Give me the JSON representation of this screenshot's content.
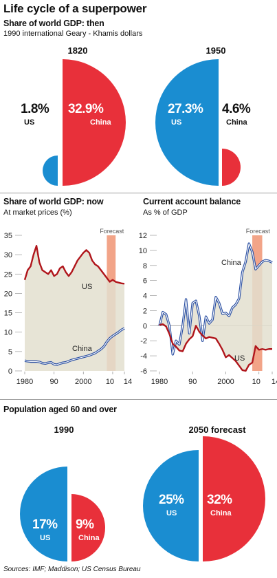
{
  "title": "Life cycle of a superpower",
  "section1": {
    "title": "Share of world GDP: then",
    "subtitle": "1990 international Geary - Khamis dollars",
    "panels": [
      {
        "year": "1820",
        "us_value": "1.8%",
        "us_label": "US",
        "china_value": "32.9%",
        "china_label": "China"
      },
      {
        "year": "1950",
        "us_value": "27.3%",
        "us_label": "US",
        "china_value": "4.6%",
        "china_label": "China"
      }
    ]
  },
  "section2": {
    "title": "Share of world GDP: now",
    "subtitle": "At market prices (%)",
    "forecast_label": "Forecast",
    "us_label": "US",
    "china_label": "China"
  },
  "section3": {
    "title": "Current account balance",
    "subtitle": "As % of GDP",
    "forecast_label": "Forecast",
    "us_label": "US",
    "china_label": "China"
  },
  "section4": {
    "title": "Population aged 60 and over",
    "panels": [
      {
        "year": "1990",
        "us_value": "17%",
        "us_label": "US",
        "china_value": "9%",
        "china_label": "China"
      },
      {
        "year": "2050 forecast",
        "us_value": "25%",
        "us_label": "US",
        "china_value": "32%",
        "china_label": "China"
      }
    ]
  },
  "source": "Sources: IMF; Maddison; US Census Bureau",
  "colors": {
    "us": "#1a8dd1",
    "china": "#e8303a",
    "area": "#e3dfcf",
    "forecast": "#f2a488",
    "us_line": "#b0151b",
    "china_line": "#2a4fa2"
  },
  "chart_data": [
    {
      "type": "pie",
      "title": "Share of world GDP: then — 1820",
      "categories": [
        "US",
        "China"
      ],
      "values": [
        1.8,
        32.9
      ]
    },
    {
      "type": "pie",
      "title": "Share of world GDP: then — 1950",
      "categories": [
        "US",
        "China"
      ],
      "values": [
        27.3,
        4.6
      ]
    },
    {
      "type": "area",
      "title": "Share of world GDP: now",
      "ylabel": "At market prices (%)",
      "x": [
        1980,
        1981,
        1982,
        1983,
        1984,
        1985,
        1986,
        1987,
        1988,
        1989,
        1990,
        1991,
        1992,
        1993,
        1994,
        1995,
        1996,
        1997,
        1998,
        1999,
        2000,
        2001,
        2002,
        2003,
        2004,
        2005,
        2006,
        2007,
        2008,
        2009,
        2010,
        2011,
        2012,
        2013,
        2014
      ],
      "xticks": [
        "1980",
        "90",
        "2000",
        "10",
        "14"
      ],
      "xtick_values": [
        1980,
        1990,
        2000,
        2010,
        2014
      ],
      "ylim": [
        0,
        35
      ],
      "yticks": [
        0,
        5,
        10,
        15,
        20,
        25,
        30,
        35
      ],
      "forecast_range": [
        2008,
        2011
      ],
      "series": [
        {
          "name": "US",
          "values": [
            23.5,
            26,
            27,
            30,
            32.3,
            28,
            26,
            25.5,
            25,
            26,
            24.5,
            25,
            26.5,
            27,
            25.5,
            24.5,
            25.5,
            27,
            28.5,
            29.5,
            30.5,
            31.2,
            30.5,
            28.5,
            27.5,
            27,
            26,
            25,
            24,
            23,
            23.5,
            23,
            22.8,
            22.6,
            22.5
          ]
        },
        {
          "name": "China",
          "values": [
            2.6,
            2.5,
            2.4,
            2.4,
            2.4,
            2.3,
            2,
            1.9,
            2.1,
            2.2,
            1.7,
            1.6,
            1.9,
            2.1,
            2.2,
            2.5,
            2.8,
            3,
            3.2,
            3.4,
            3.6,
            3.8,
            4,
            4.3,
            4.6,
            5.1,
            5.6,
            6.3,
            7.5,
            8.4,
            9,
            9.5,
            10,
            10.6,
            11
          ]
        }
      ]
    },
    {
      "type": "line",
      "title": "Current account balance",
      "ylabel": "As % of GDP",
      "x": [
        1980,
        1981,
        1982,
        1983,
        1984,
        1985,
        1986,
        1987,
        1988,
        1989,
        1990,
        1991,
        1992,
        1993,
        1994,
        1995,
        1996,
        1997,
        1998,
        1999,
        2000,
        2001,
        2002,
        2003,
        2004,
        2005,
        2006,
        2007,
        2008,
        2009,
        2010,
        2011,
        2012,
        2013,
        2014
      ],
      "xticks": [
        "1980",
        "90",
        "2000",
        "10",
        "14"
      ],
      "xtick_values": [
        1980,
        1990,
        2000,
        2010,
        2014
      ],
      "ylim": [
        -6,
        12
      ],
      "yticks": [
        -6,
        -4,
        -2,
        0,
        2,
        4,
        6,
        8,
        10,
        12
      ],
      "forecast_range": [
        2008,
        2011
      ],
      "series": [
        {
          "name": "China",
          "values": [
            0,
            1.8,
            1.5,
            0,
            -3.8,
            -2,
            -2.5,
            0,
            3.5,
            -1,
            3,
            3.3,
            1.3,
            -2,
            1.2,
            0.3,
            0.8,
            3.8,
            3,
            1.6,
            1.7,
            1.3,
            2.4,
            2.8,
            3.6,
            7.1,
            8.5,
            10.9,
            9.8,
            7.5,
            8,
            8.5,
            8.7,
            8.6,
            8.4
          ]
        },
        {
          "name": "US",
          "values": [
            0.1,
            0.2,
            -0.1,
            -1.1,
            -2.4,
            -2.8,
            -3.3,
            -3.4,
            -2.4,
            -1.8,
            -1.4,
            0,
            -0.8,
            -1.3,
            -1.7,
            -1.5,
            -1.6,
            -1.7,
            -2.4,
            -3.2,
            -4.2,
            -3.9,
            -4.3,
            -4.7,
            -5.3,
            -5.9,
            -6,
            -5.2,
            -4.9,
            -2.7,
            -3.2,
            -3.1,
            -3.2,
            -3.1,
            -3.1
          ]
        }
      ]
    },
    {
      "type": "pie",
      "title": "Population aged 60 and over — 1990",
      "categories": [
        "US",
        "China"
      ],
      "values": [
        17,
        9
      ]
    },
    {
      "type": "pie",
      "title": "Population aged 60 and over — 2050 forecast",
      "categories": [
        "US",
        "China"
      ],
      "values": [
        25,
        32
      ]
    }
  ]
}
